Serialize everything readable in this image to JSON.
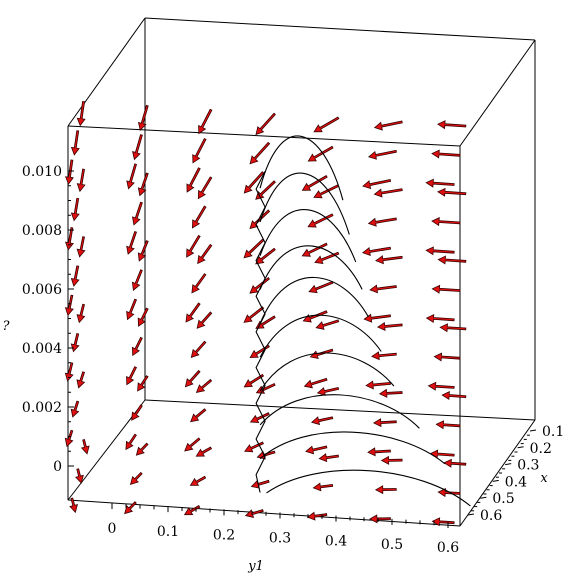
{
  "chart_data": {
    "type": "3d-field-plot",
    "title": "",
    "axes": {
      "x": {
        "label": "x",
        "range": [
          0.1,
          0.6
        ],
        "ticks": [
          "0.1",
          "0.2",
          "0.3",
          "0.4",
          "0.5",
          "0.6"
        ]
      },
      "y": {
        "label": "y1",
        "range": [
          0,
          0.6
        ],
        "ticks": [
          "0",
          "0.1",
          "0.2",
          "0.3",
          "0.4",
          "0.5",
          "0.6"
        ]
      },
      "z": {
        "label": "?",
        "range": [
          0,
          0.011
        ],
        "ticks": [
          "0",
          "0.002",
          "0.004",
          "0.006",
          "0.008",
          "0.010"
        ]
      }
    },
    "field": {
      "description_grid_y": [
        0.0,
        0.1,
        0.2,
        0.3,
        0.4,
        0.5,
        0.6
      ],
      "description_grid_z": [
        0.0,
        0.002,
        0.004,
        0.006,
        0.008,
        0.01
      ],
      "arrow_color": "#e01010"
    },
    "trajectories": [
      {
        "start_y": 0.3,
        "start_z": 0.0,
        "end_y": 0.62,
        "end_z": 0.0
      },
      {
        "start_y": 0.29,
        "start_z": 0.001,
        "end_y": 0.58,
        "end_z": 0.0012
      },
      {
        "start_y": 0.29,
        "start_z": 0.002,
        "end_y": 0.54,
        "end_z": 0.0022
      },
      {
        "start_y": 0.29,
        "start_z": 0.003,
        "end_y": 0.5,
        "end_z": 0.0034
      },
      {
        "start_y": 0.29,
        "start_z": 0.004,
        "end_y": 0.48,
        "end_z": 0.0044
      },
      {
        "start_y": 0.29,
        "start_z": 0.005,
        "end_y": 0.46,
        "end_z": 0.0054
      },
      {
        "start_y": 0.29,
        "start_z": 0.006,
        "end_y": 0.45,
        "end_z": 0.0062
      },
      {
        "start_y": 0.29,
        "start_z": 0.007,
        "end_y": 0.44,
        "end_z": 0.007
      },
      {
        "start_y": 0.29,
        "start_z": 0.008,
        "end_y": 0.43,
        "end_z": 0.0078
      },
      {
        "start_y": 0.29,
        "start_z": 0.009,
        "end_y": 0.42,
        "end_z": 0.0088
      }
    ]
  }
}
